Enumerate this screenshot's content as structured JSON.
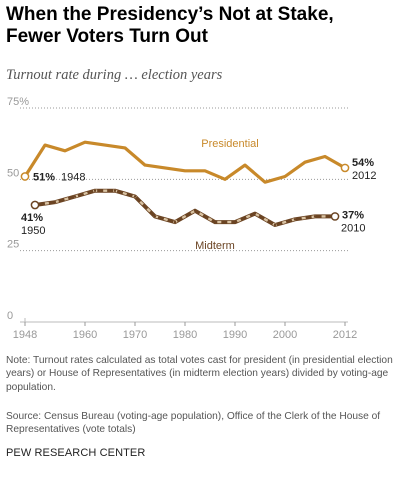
{
  "title_line1": "When the Presidency’s Not at Stake,",
  "title_line2": "Fewer Voters Turn Out",
  "subtitle": "Turnout rate during … election years",
  "note": "Note: Turnout rates calculated as total votes cast for president (in presidential election years) or House of Representatives (in midterm election years) divided by voting-age population.",
  "source": "Source: Census Bureau (voting-age population), Office of the Clerk of the House of Representatives (vote totals)",
  "brand": "PEW RESEARCH CENTER",
  "colors": {
    "presidential": "#c8892a",
    "midterm": "#6b4423",
    "midterm_dash": "#d9c3a3",
    "axis": "#999999",
    "tick_text": "#999999"
  },
  "chart_data": {
    "type": "line",
    "xlim": [
      1948,
      2012
    ],
    "ylim": [
      0,
      75
    ],
    "x_ticks": [
      "1948",
      "1960",
      "1970",
      "1980",
      "1990",
      "2000",
      "2012"
    ],
    "y_ticks": [
      {
        "value": 0,
        "label": "0"
      },
      {
        "value": 25,
        "label": "25"
      },
      {
        "value": 50,
        "label": "50"
      },
      {
        "value": 75,
        "label": "75%"
      }
    ],
    "grid": "dotted horizontal",
    "series": [
      {
        "name": "Presidential",
        "x": [
          1948,
          1952,
          1956,
          1960,
          1964,
          1968,
          1972,
          1976,
          1980,
          1984,
          1988,
          1992,
          1996,
          2000,
          2004,
          2008,
          2012
        ],
        "y": [
          51,
          62,
          60,
          63,
          62,
          61,
          55,
          54,
          53,
          53,
          50,
          55,
          49,
          51,
          56,
          58,
          54
        ]
      },
      {
        "name": "Midterm",
        "x": [
          1950,
          1954,
          1958,
          1962,
          1966,
          1970,
          1974,
          1978,
          1982,
          1986,
          1990,
          1994,
          1998,
          2002,
          2006,
          2010
        ],
        "y": [
          41,
          42,
          44,
          46,
          46,
          44,
          37,
          35,
          39,
          35,
          35,
          38,
          34,
          36,
          37,
          37
        ]
      }
    ],
    "annotations": {
      "pres_start_value": "51%",
      "pres_start_year": "1948",
      "pres_end_value": "54%",
      "pres_end_year": "2012",
      "mid_start_value": "41%",
      "mid_start_year": "1950",
      "mid_end_value": "37%",
      "mid_end_year": "2010"
    }
  }
}
